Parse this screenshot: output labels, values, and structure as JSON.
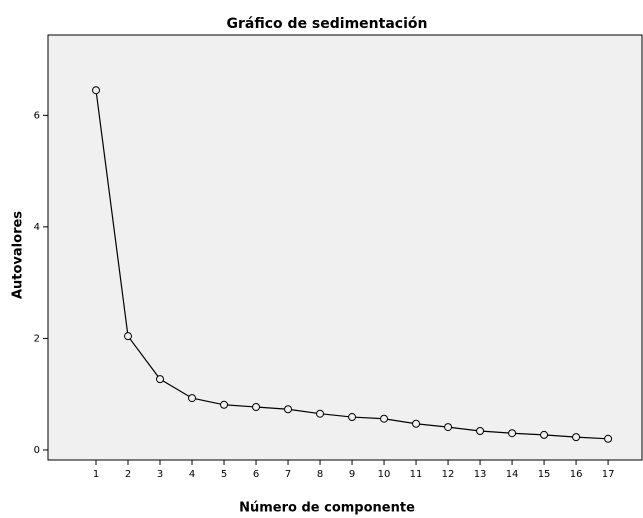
{
  "chart_data": {
    "type": "line",
    "title": "Gráfico de sedimentación",
    "x_label": "Número de componente",
    "y_label": "Autovalores",
    "x": [
      1,
      2,
      3,
      4,
      5,
      6,
      7,
      8,
      9,
      10,
      11,
      12,
      13,
      14,
      15,
      16,
      17
    ],
    "series": [
      {
        "name": "Autovalores",
        "color": "#000000",
        "values": [
          6.45,
          2.04,
          1.27,
          0.93,
          0.81,
          0.77,
          0.73,
          0.65,
          0.59,
          0.56,
          0.47,
          0.41,
          0.34,
          0.3,
          0.27,
          0.23,
          0.2
        ]
      }
    ],
    "xlim": [
      -0.5,
      18.06
    ],
    "xticks": [
      1,
      2,
      3,
      4,
      5,
      6,
      7,
      8,
      9,
      10,
      11,
      12,
      13,
      14,
      15,
      16,
      17
    ],
    "ylim": [
      -0.18,
      7.44
    ],
    "yticks": [
      0,
      2,
      4,
      6
    ],
    "grid": false
  }
}
